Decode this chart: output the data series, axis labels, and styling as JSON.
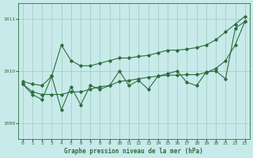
{
  "title": "Graphe pression niveau de la mer (hPa)",
  "bg_color": "#c8eaea",
  "grid_color": "#99ccbb",
  "line_color": "#2d6e3e",
  "xlim": [
    -0.5,
    23.5
  ],
  "ylim": [
    1008.7,
    1011.3
  ],
  "yticks": [
    1009,
    1010,
    1011
  ],
  "xticks": [
    0,
    1,
    2,
    3,
    4,
    5,
    6,
    7,
    8,
    9,
    10,
    11,
    12,
    13,
    14,
    15,
    16,
    17,
    18,
    19,
    20,
    21,
    22,
    23
  ],
  "upper_x": [
    0,
    1,
    2,
    3,
    4,
    5,
    6,
    7,
    8,
    9,
    10,
    11,
    12,
    13,
    14,
    15,
    16,
    17,
    18,
    19,
    20,
    21,
    22,
    23
  ],
  "upper_y": [
    1009.8,
    1009.75,
    1009.72,
    1009.9,
    1010.5,
    1010.2,
    1010.1,
    1010.1,
    1010.15,
    1010.2,
    1010.25,
    1010.25,
    1010.28,
    1010.3,
    1010.35,
    1010.4,
    1010.4,
    1010.42,
    1010.45,
    1010.5,
    1010.6,
    1010.75,
    1010.9,
    1011.05
  ],
  "mid_x": [
    0,
    1,
    2,
    3,
    4,
    5,
    6,
    7,
    8,
    9,
    10,
    11,
    12,
    13,
    14,
    15,
    16,
    17,
    18,
    19,
    20,
    21,
    22,
    23
  ],
  "mid_y": [
    1009.75,
    1009.6,
    1009.55,
    1009.55,
    1009.55,
    1009.6,
    1009.6,
    1009.65,
    1009.7,
    1009.72,
    1009.8,
    1009.82,
    1009.85,
    1009.88,
    1009.9,
    1009.92,
    1009.92,
    1009.93,
    1009.93,
    1009.97,
    1010.05,
    1010.2,
    1010.5,
    1010.95
  ],
  "jagged_x": [
    0,
    1,
    2,
    3,
    4,
    5,
    6,
    7,
    8,
    9,
    10,
    11,
    12,
    13,
    14,
    15,
    16,
    17,
    18,
    19,
    20,
    21,
    22,
    23
  ],
  "jagged_y": [
    1009.75,
    1009.55,
    1009.45,
    1009.9,
    1009.25,
    1009.7,
    1009.35,
    1009.72,
    1009.65,
    1009.72,
    1010.0,
    1009.72,
    1009.82,
    1009.65,
    1009.9,
    1009.95,
    1010.0,
    1009.78,
    1009.72,
    1009.98,
    1010.0,
    1009.85,
    1010.82,
    1010.95
  ]
}
